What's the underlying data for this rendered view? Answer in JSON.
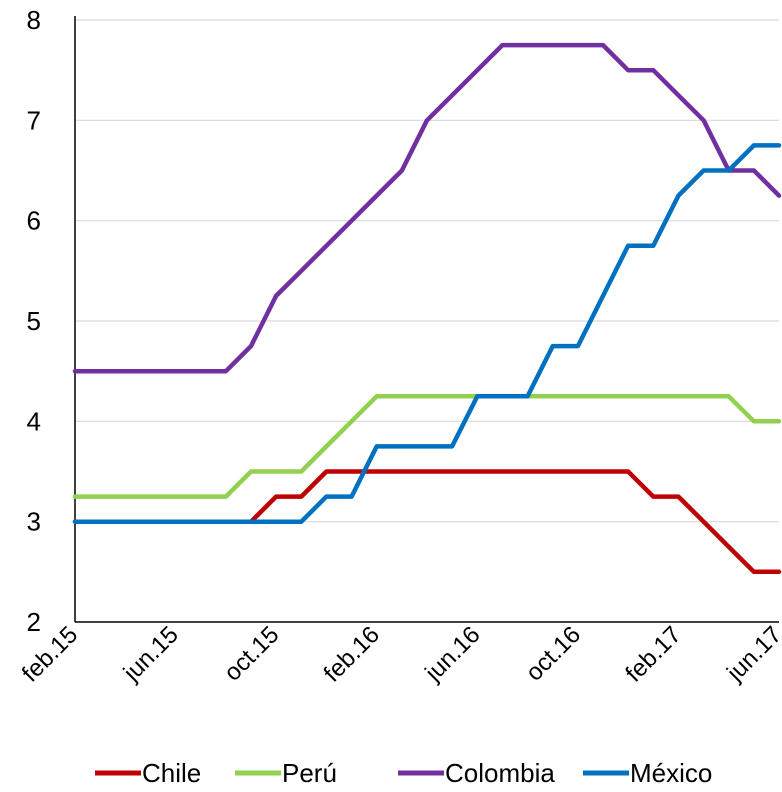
{
  "chart_data": {
    "type": "line",
    "title": "",
    "xlabel": "",
    "ylabel": "",
    "ylim": [
      2,
      8
    ],
    "yticks": [
      "2",
      "3",
      "4",
      "5",
      "6",
      "7",
      "8"
    ],
    "grid": "horizontal",
    "legend_position": "bottom",
    "x_tick_labels": [
      "feb.15",
      "jun.15",
      "oct.15",
      "feb.16",
      "jun.16",
      "oct.16",
      "feb.17",
      "jun.17"
    ],
    "x": [
      "feb.15",
      "mar.15",
      "apr.15",
      "may.15",
      "jun.15",
      "jul.15",
      "aug.15",
      "sep.15",
      "oct.15",
      "nov.15",
      "dec.15",
      "jan.16",
      "feb.16",
      "mar.16",
      "apr.16",
      "may.16",
      "jun.16",
      "jul.16",
      "aug.16",
      "sep.16",
      "oct.16",
      "nov.16",
      "dec.16",
      "jan.17",
      "feb.17",
      "mar.17",
      "apr.17",
      "may.17",
      "jun.17"
    ],
    "series": [
      {
        "name": "Chile",
        "color": "#c00000",
        "values": [
          3,
          3,
          3,
          3,
          3,
          3,
          3,
          3,
          3.25,
          3.25,
          3.5,
          3.5,
          3.5,
          3.5,
          3.5,
          3.5,
          3.5,
          3.5,
          3.5,
          3.5,
          3.5,
          3.5,
          3.5,
          3.25,
          3.25,
          3,
          2.75,
          2.5,
          2.5
        ]
      },
      {
        "name": "Perú",
        "color": "#92d050",
        "values": [
          3.25,
          3.25,
          3.25,
          3.25,
          3.25,
          3.25,
          3.25,
          3.5,
          3.5,
          3.5,
          3.75,
          4,
          4.25,
          4.25,
          4.25,
          4.25,
          4.25,
          4.25,
          4.25,
          4.25,
          4.25,
          4.25,
          4.25,
          4.25,
          4.25,
          4.25,
          4.25,
          4,
          4
        ]
      },
      {
        "name": "Colombia",
        "color": "#7030a0",
        "values": [
          4.5,
          4.5,
          4.5,
          4.5,
          4.5,
          4.5,
          4.5,
          4.75,
          5.25,
          5.5,
          5.75,
          6,
          6.25,
          6.5,
          7,
          7.25,
          7.5,
          7.75,
          7.75,
          7.75,
          7.75,
          7.75,
          7.5,
          7.5,
          7.25,
          7,
          6.5,
          6.5,
          6.25
        ]
      },
      {
        "name": "México",
        "color": "#0070c0",
        "values": [
          3,
          3,
          3,
          3,
          3,
          3,
          3,
          3,
          3,
          3,
          3.25,
          3.25,
          3.75,
          3.75,
          3.75,
          3.75,
          4.25,
          4.25,
          4.25,
          4.75,
          4.75,
          5.25,
          5.75,
          5.75,
          6.25,
          6.5,
          6.5,
          6.75,
          6.75
        ]
      }
    ]
  }
}
